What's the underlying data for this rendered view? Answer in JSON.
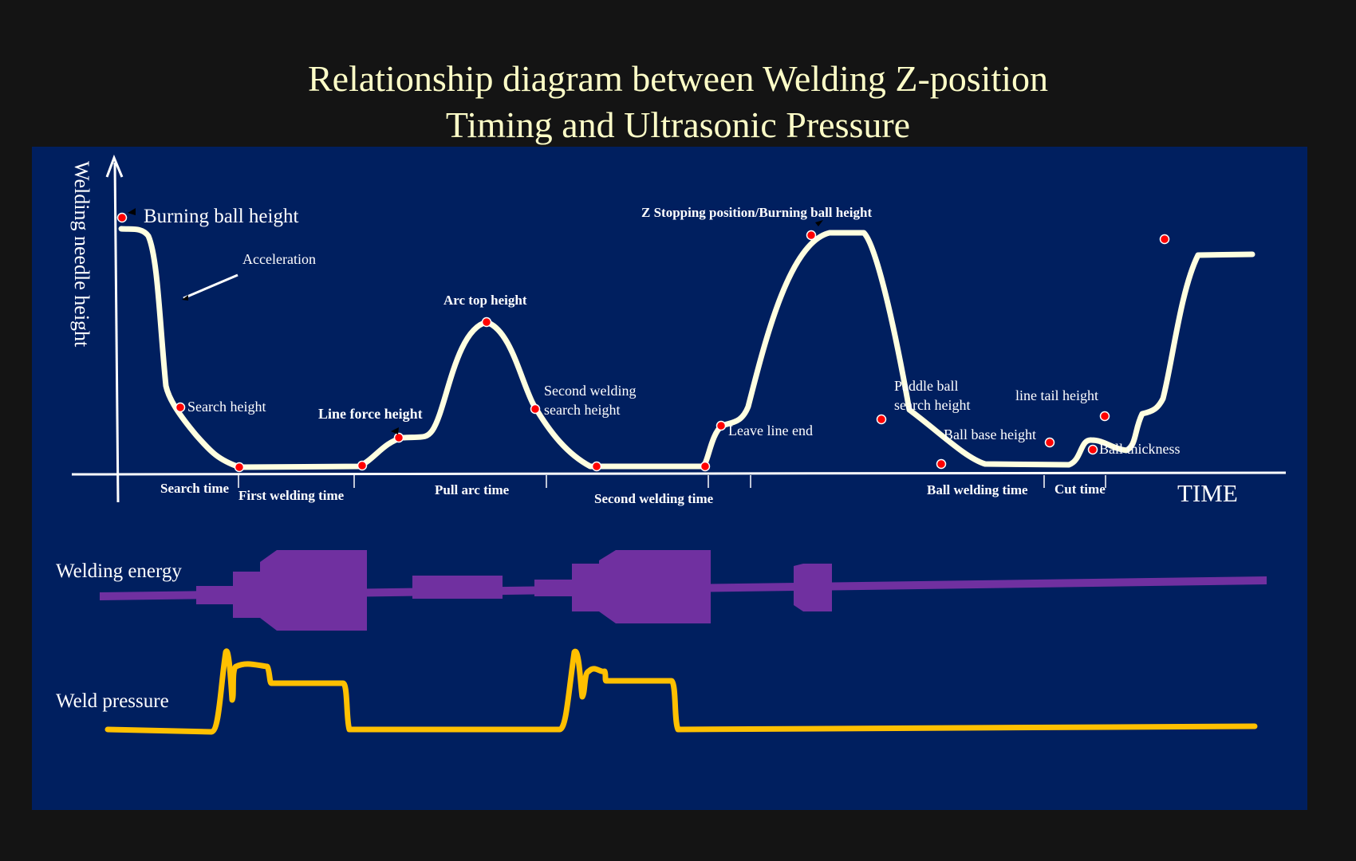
{
  "title": {
    "line1": "Relationship diagram between Welding Z-position",
    "line2": "Timing and Ultrasonic Pressure"
  },
  "z_axis": {
    "y_label": "Welding needle height",
    "x_label": "TIME"
  },
  "point_labels": {
    "burning_ball_height": "Burning ball height",
    "acceleration": "Acceleration",
    "search_height": "Search height",
    "line_force_height": "Line force height",
    "arc_top_height": "Arc top height",
    "second_welding_search_height_1": "Second welding",
    "second_welding_search_height_2": "search height",
    "z_stopping": "Z Stopping position/Burning ball height",
    "leave_line_end": "Leave line end",
    "paddle_ball_1": "Paddle ball",
    "paddle_ball_2": "search height",
    "ball_base_height": "Ball base height",
    "line_tail_height": "line tail height",
    "ball_thickness": "Ball thickness"
  },
  "time_labels": {
    "search_time": "Search time",
    "first_welding_time": "First welding time",
    "pull_arc_time": "Pull arc time",
    "second_welding_time": "Second welding time",
    "ball_welding_time": "Ball welding time",
    "cut_time": "Cut time"
  },
  "signals": {
    "welding_energy": "Welding energy",
    "weld_pressure": "Weld pressure"
  },
  "colors": {
    "background": "#141414",
    "panel": "#001F5F",
    "title": "#FFFFC8",
    "curve": "#FFFFE0",
    "marker": "#FF0000",
    "energy": "#7030A0",
    "pressure": "#FFC000"
  }
}
